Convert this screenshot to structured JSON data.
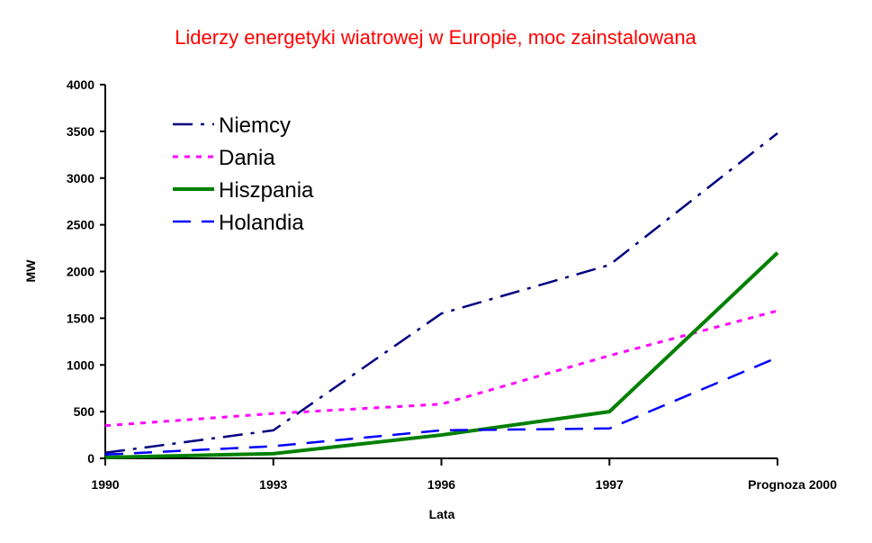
{
  "chart_data": {
    "type": "line",
    "title": "Liderzy energetyki wiatrowej w Europie, moc zainstalowana",
    "xlabel": "Lata",
    "ylabel": "MW",
    "categories": [
      "1990",
      "1993",
      "1996",
      "1997",
      "Prognoza 2000"
    ],
    "ylim": [
      0,
      4000
    ],
    "yticks": [
      0,
      500,
      1000,
      1500,
      2000,
      2500,
      3000,
      3500,
      4000
    ],
    "grid": false,
    "legend_position": "top-left",
    "series": [
      {
        "name": "Niemcy",
        "values": [
          60,
          300,
          1550,
          2070,
          3480
        ],
        "color": "#000080",
        "style": "dash-dot"
      },
      {
        "name": "Dania",
        "values": [
          350,
          480,
          580,
          1100,
          1580
        ],
        "color": "#ff00ff",
        "style": "dotted"
      },
      {
        "name": "Hiszpania",
        "values": [
          10,
          50,
          250,
          500,
          2200
        ],
        "color": "#008000",
        "style": "solid"
      },
      {
        "name": "Holandia",
        "values": [
          40,
          130,
          300,
          320,
          1080
        ],
        "color": "#0000ff",
        "style": "dashed"
      }
    ]
  }
}
